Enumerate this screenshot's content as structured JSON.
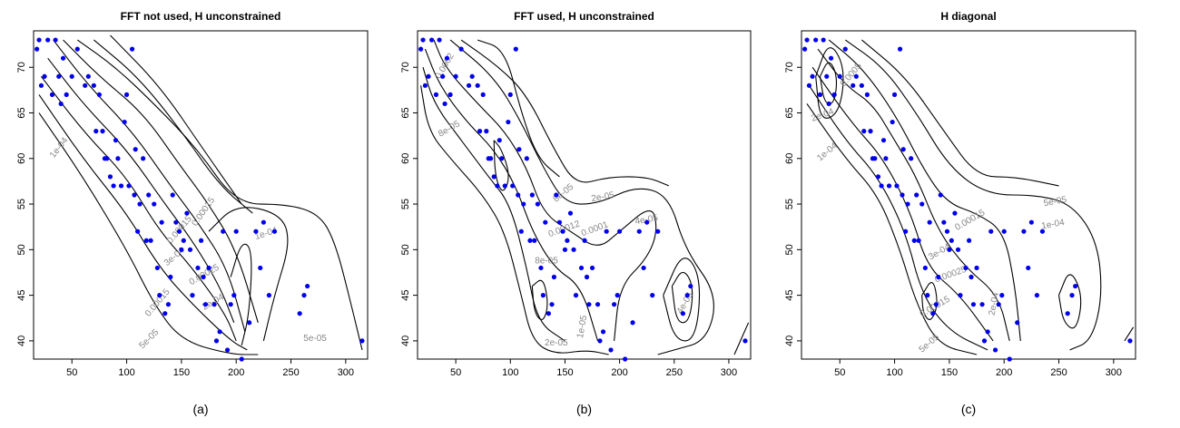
{
  "chart_data": [
    {
      "type": "scatter",
      "panel": "a",
      "title": "FFT not used, H unconstrained",
      "caption": "(a)",
      "xlim": [
        15,
        320
      ],
      "ylim": [
        38,
        74
      ],
      "xticks": [
        50,
        100,
        150,
        200,
        250,
        300
      ],
      "yticks": [
        40,
        45,
        50,
        55,
        60,
        65,
        70
      ],
      "point_color": "#0000ee",
      "contour_labels": [
        {
          "text": "1e-04",
          "x": 40,
          "y": 61,
          "angle": 52
        },
        {
          "text": "0.00015",
          "x": 150,
          "y": 52,
          "angle": 50
        },
        {
          "text": "3e-04",
          "x": 145,
          "y": 49,
          "angle": 40
        },
        {
          "text": "0.00015",
          "x": 172,
          "y": 54,
          "angle": 55
        },
        {
          "text": "0.00025",
          "x": 172,
          "y": 47,
          "angle": 30
        },
        {
          "text": "1e-04",
          "x": 228,
          "y": 51.5,
          "angle": 18
        },
        {
          "text": "2e-04",
          "x": 180,
          "y": 44,
          "angle": 30
        },
        {
          "text": "0.00015",
          "x": 130,
          "y": 44,
          "angle": 50
        },
        {
          "text": "5e-05",
          "x": 122,
          "y": 40,
          "angle": 45
        },
        {
          "text": "5e-05",
          "x": 272,
          "y": 40,
          "angle": 0
        }
      ]
    },
    {
      "type": "scatter",
      "panel": "b",
      "title": "FFT used, H unconstrained",
      "caption": "(b)",
      "xlim": [
        15,
        320
      ],
      "ylim": [
        38,
        74
      ],
      "xticks": [
        50,
        100,
        150,
        200,
        250,
        300
      ],
      "yticks": [
        40,
        45,
        50,
        55,
        60,
        65,
        70
      ],
      "point_color": "#0000ee",
      "contour_labels": [
        {
          "text": "0.0002",
          "x": 42,
          "y": 70,
          "angle": 60
        },
        {
          "text": "8e-05",
          "x": 45,
          "y": 63,
          "angle": 30
        },
        {
          "text": "8e-05",
          "x": 150,
          "y": 56,
          "angle": 40
        },
        {
          "text": "2e-05",
          "x": 185,
          "y": 55.5,
          "angle": 10
        },
        {
          "text": "4e-05",
          "x": 225,
          "y": 53,
          "angle": 10
        },
        {
          "text": "0.00012",
          "x": 150,
          "y": 52,
          "angle": 20
        },
        {
          "text": "0.0001",
          "x": 178,
          "y": 52,
          "angle": 20
        },
        {
          "text": "8e-05",
          "x": 133,
          "y": 48.5,
          "angle": 0
        },
        {
          "text": "1e-05",
          "x": 168,
          "y": 41.5,
          "angle": 80
        },
        {
          "text": "2e-05",
          "x": 142,
          "y": 39.5,
          "angle": 0
        },
        {
          "text": "4e-05",
          "x": 262,
          "y": 44,
          "angle": 60
        }
      ]
    },
    {
      "type": "scatter",
      "panel": "c",
      "title": "H diagonal",
      "caption": "(c)",
      "xlim": [
        15,
        320
      ],
      "ylim": [
        38,
        74
      ],
      "xticks": [
        50,
        100,
        150,
        200,
        250,
        300
      ],
      "yticks": [
        40,
        45,
        50,
        55,
        60,
        65,
        70
      ],
      "point_color": "#0000ee",
      "contour_labels": [
        {
          "text": "0.0005",
          "x": 62,
          "y": 69,
          "angle": 50
        },
        {
          "text": "2e-04",
          "x": 35,
          "y": 64.5,
          "angle": 20
        },
        {
          "text": "1e-04",
          "x": 40,
          "y": 60.5,
          "angle": 40
        },
        {
          "text": "5e-05",
          "x": 247,
          "y": 55,
          "angle": 10
        },
        {
          "text": "0.00015",
          "x": 170,
          "y": 53,
          "angle": 30
        },
        {
          "text": "1e-04",
          "x": 245,
          "y": 52.5,
          "angle": 10
        },
        {
          "text": "3e-04",
          "x": 142,
          "y": 49.5,
          "angle": 30
        },
        {
          "text": "0.00025",
          "x": 152,
          "y": 47,
          "angle": 20
        },
        {
          "text": "0.00015",
          "x": 138,
          "y": 43.5,
          "angle": 30
        },
        {
          "text": "5e-05",
          "x": 133,
          "y": 39.5,
          "angle": 40
        },
        {
          "text": "2e-04",
          "x": 193,
          "y": 44,
          "angle": 80
        }
      ]
    }
  ],
  "shared_points": {
    "x": [
      18,
      20,
      22,
      25,
      28,
      32,
      35,
      38,
      40,
      42,
      45,
      50,
      55,
      62,
      65,
      70,
      72,
      75,
      78,
      80,
      82,
      85,
      88,
      90,
      92,
      95,
      98,
      100,
      102,
      105,
      107,
      108,
      110,
      112,
      115,
      118,
      120,
      122,
      125,
      128,
      130,
      132,
      135,
      138,
      140,
      142,
      145,
      148,
      150,
      152,
      155,
      158,
      160,
      165,
      168,
      170,
      172,
      175,
      180,
      182,
      185,
      188,
      192,
      195,
      198,
      200,
      205,
      212,
      218,
      222,
      225,
      230,
      235,
      258,
      262,
      265,
      315
    ],
    "y": [
      72,
      73,
      68,
      69,
      73,
      67,
      73,
      69,
      66,
      71,
      67,
      69,
      72,
      68,
      69,
      68,
      63,
      67,
      63,
      60,
      60,
      58,
      57,
      62,
      60,
      57,
      64,
      67,
      57,
      72,
      56,
      61,
      52,
      55,
      60,
      51,
      56,
      51,
      55,
      48,
      45,
      53,
      43,
      44,
      47,
      56,
      53,
      52,
      50,
      51,
      54,
      50,
      45,
      48,
      51,
      47,
      44,
      48,
      44,
      40,
      41,
      52,
      39,
      44,
      45,
      52,
      38,
      42,
      52,
      48,
      53,
      45,
      52,
      43,
      45,
      46,
      40
    ]
  }
}
